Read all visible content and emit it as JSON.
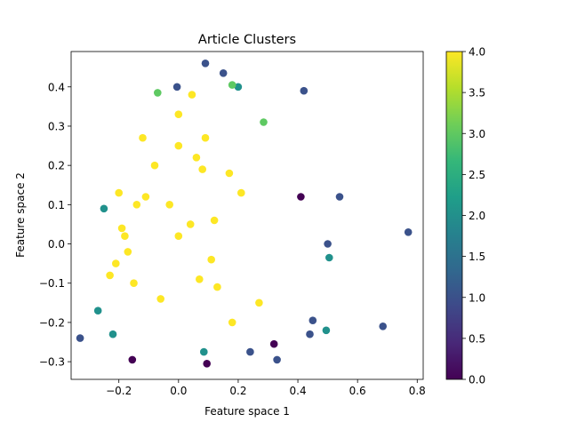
{
  "chart_data": {
    "type": "scatter",
    "title": "Article Clusters",
    "xlabel": "Feature space 1",
    "ylabel": "Feature space 2",
    "xlim": [
      -0.36,
      0.82
    ],
    "ylim": [
      -0.345,
      0.49
    ],
    "xticks": [
      -0.2,
      0.0,
      0.2,
      0.4,
      0.6,
      0.8
    ],
    "xtick_labels": [
      "−0.2",
      "0.0",
      "0.2",
      "0.4",
      "0.6",
      "0.8"
    ],
    "yticks": [
      -0.3,
      -0.2,
      -0.1,
      0.0,
      0.1,
      0.2,
      0.3,
      0.4
    ],
    "ytick_labels": [
      "−0.3",
      "−0.2",
      "−0.1",
      "0.0",
      "0.1",
      "0.2",
      "0.3",
      "0.4"
    ],
    "grid": false,
    "colorbar": {
      "colormap": "viridis",
      "range": [
        0.0,
        4.0
      ],
      "ticks": [
        0.0,
        0.5,
        1.0,
        1.5,
        2.0,
        2.5,
        3.0,
        3.5,
        4.0
      ],
      "tick_labels": [
        "0.0",
        "0.5",
        "1.0",
        "1.5",
        "2.0",
        "2.5",
        "3.0",
        "3.5",
        "4.0"
      ],
      "stops": [
        "#440154",
        "#482878",
        "#3e4989",
        "#31688e",
        "#26828e",
        "#1f9e89",
        "#35b779",
        "#6ece58",
        "#b5de2b",
        "#fde725"
      ]
    },
    "cluster_colors": [
      "#440154",
      "#3b528b",
      "#21918c",
      "#5ec962",
      "#fde725"
    ],
    "points": [
      {
        "x": 0.09,
        "y": 0.46,
        "c": 1
      },
      {
        "x": 0.15,
        "y": 0.435,
        "c": 1
      },
      {
        "x": 0.42,
        "y": 0.39,
        "c": 1
      },
      {
        "x": 0.77,
        "y": 0.03,
        "c": 1
      },
      {
        "x": 0.685,
        "y": -0.21,
        "c": 1
      },
      {
        "x": 0.54,
        "y": 0.12,
        "c": 1
      },
      {
        "x": 0.5,
        "y": 0.0,
        "c": 1
      },
      {
        "x": -0.33,
        "y": -0.24,
        "c": 1
      },
      {
        "x": 0.495,
        "y": -0.22,
        "c": 2
      },
      {
        "x": 0.505,
        "y": -0.035,
        "c": 2
      },
      {
        "x": 0.2,
        "y": 0.4,
        "c": 2
      },
      {
        "x": 0.18,
        "y": 0.405,
        "c": 3
      },
      {
        "x": 0.285,
        "y": 0.31,
        "c": 3
      },
      {
        "x": 0.095,
        "y": -0.305,
        "c": 0
      },
      {
        "x": -0.155,
        "y": -0.295,
        "c": 0
      },
      {
        "x": 0.33,
        "y": -0.295,
        "c": 1
      },
      {
        "x": 0.45,
        "y": -0.195,
        "c": 1
      },
      {
        "x": 0.44,
        "y": -0.23,
        "c": 1
      },
      {
        "x": -0.25,
        "y": 0.09,
        "c": 2
      },
      {
        "x": -0.27,
        "y": -0.17,
        "c": 2
      },
      {
        "x": -0.22,
        "y": -0.23,
        "c": 2
      },
      {
        "x": 0.41,
        "y": 0.12,
        "c": 0
      },
      {
        "x": -0.005,
        "y": 0.4,
        "c": 1
      },
      {
        "x": 0.045,
        "y": 0.38,
        "c": 4
      },
      {
        "x": -0.07,
        "y": 0.385,
        "c": 3
      },
      {
        "x": 0.085,
        "y": -0.275,
        "c": 2
      },
      {
        "x": 0.24,
        "y": -0.275,
        "c": 1
      },
      {
        "x": 0.32,
        "y": -0.255,
        "c": 0
      },
      {
        "x": -0.2,
        "y": 0.13,
        "c": 4
      },
      {
        "x": 0.0,
        "y": 0.33,
        "c": 4
      },
      {
        "x": -0.18,
        "y": 0.02,
        "c": 4
      },
      {
        "x": 0.17,
        "y": 0.18,
        "c": 4
      },
      {
        "x": -0.11,
        "y": 0.12,
        "c": 4
      },
      {
        "x": -0.21,
        "y": -0.05,
        "c": 4
      },
      {
        "x": 0.27,
        "y": -0.15,
        "c": 4
      },
      {
        "x": 0.04,
        "y": 0.05,
        "c": 4
      },
      {
        "x": -0.14,
        "y": 0.1,
        "c": 4
      },
      {
        "x": 0.09,
        "y": 0.27,
        "c": 4
      },
      {
        "x": 0.08,
        "y": 0.19,
        "c": 4
      },
      {
        "x": -0.15,
        "y": -0.1,
        "c": 4
      },
      {
        "x": 0.13,
        "y": -0.11,
        "c": 4
      },
      {
        "x": -0.08,
        "y": 0.2,
        "c": 4
      },
      {
        "x": -0.19,
        "y": 0.04,
        "c": 4
      },
      {
        "x": 0.0,
        "y": 0.25,
        "c": 4
      },
      {
        "x": 0.07,
        "y": -0.09,
        "c": 4
      },
      {
        "x": -0.06,
        "y": -0.14,
        "c": 4
      },
      {
        "x": 0.0,
        "y": 0.02,
        "c": 4
      },
      {
        "x": 0.12,
        "y": 0.06,
        "c": 4
      },
      {
        "x": -0.17,
        "y": -0.02,
        "c": 4
      },
      {
        "x": 0.21,
        "y": 0.13,
        "c": 4
      },
      {
        "x": 0.11,
        "y": -0.04,
        "c": 4
      },
      {
        "x": -0.03,
        "y": 0.1,
        "c": 4
      },
      {
        "x": 0.06,
        "y": 0.22,
        "c": 4
      },
      {
        "x": -0.23,
        "y": -0.08,
        "c": 4
      },
      {
        "x": 0.18,
        "y": -0.2,
        "c": 4
      },
      {
        "x": -0.12,
        "y": 0.27,
        "c": 4
      }
    ]
  }
}
